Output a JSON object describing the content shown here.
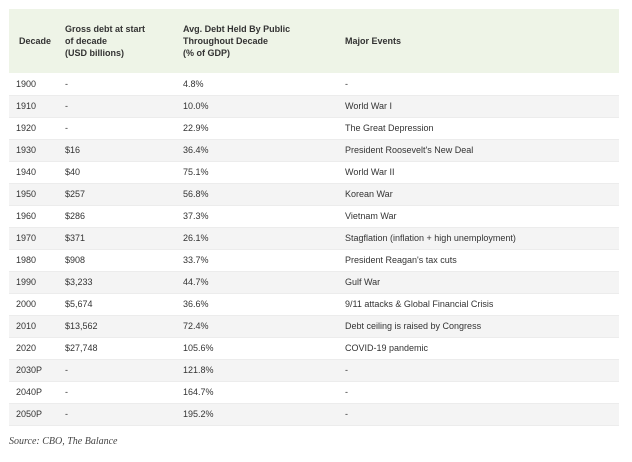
{
  "table": {
    "headers": [
      [
        "Decade"
      ],
      [
        "Gross debt at start",
        "of decade",
        "(USD billions)"
      ],
      [
        "Avg. Debt Held By Public",
        "Throughout Decade",
        "(% of GDP)"
      ],
      [
        "Major Events"
      ]
    ],
    "rows": [
      [
        "1900",
        "-",
        "4.8%",
        "-"
      ],
      [
        "1910",
        "-",
        "10.0%",
        "World War I"
      ],
      [
        "1920",
        "-",
        "22.9%",
        "The Great Depression"
      ],
      [
        "1930",
        "$16",
        "36.4%",
        "President Roosevelt's New Deal"
      ],
      [
        "1940",
        "$40",
        "75.1%",
        "World War II"
      ],
      [
        "1950",
        "$257",
        "56.8%",
        "Korean War"
      ],
      [
        "1960",
        "$286",
        "37.3%",
        "Vietnam War"
      ],
      [
        "1970",
        "$371",
        "26.1%",
        "Stagflation (inflation + high unemployment)"
      ],
      [
        "1980",
        "$908",
        "33.7%",
        "President Reagan's tax cuts"
      ],
      [
        "1990",
        "$3,233",
        "44.7%",
        "Gulf War"
      ],
      [
        "2000",
        "$5,674",
        "36.6%",
        "9/11 attacks & Global Financial Crisis"
      ],
      [
        "2010",
        "$13,562",
        "72.4%",
        "Debt ceiling is raised by Congress"
      ],
      [
        "2020",
        "$27,748",
        "105.6%",
        "COVID-19 pandemic"
      ],
      [
        "2030P",
        "-",
        "121.8%",
        "-"
      ],
      [
        "2040P",
        "-",
        "164.7%",
        "-"
      ],
      [
        "2050P",
        "-",
        "195.2%",
        "-"
      ]
    ]
  },
  "source": "Source: CBO, The Balance"
}
